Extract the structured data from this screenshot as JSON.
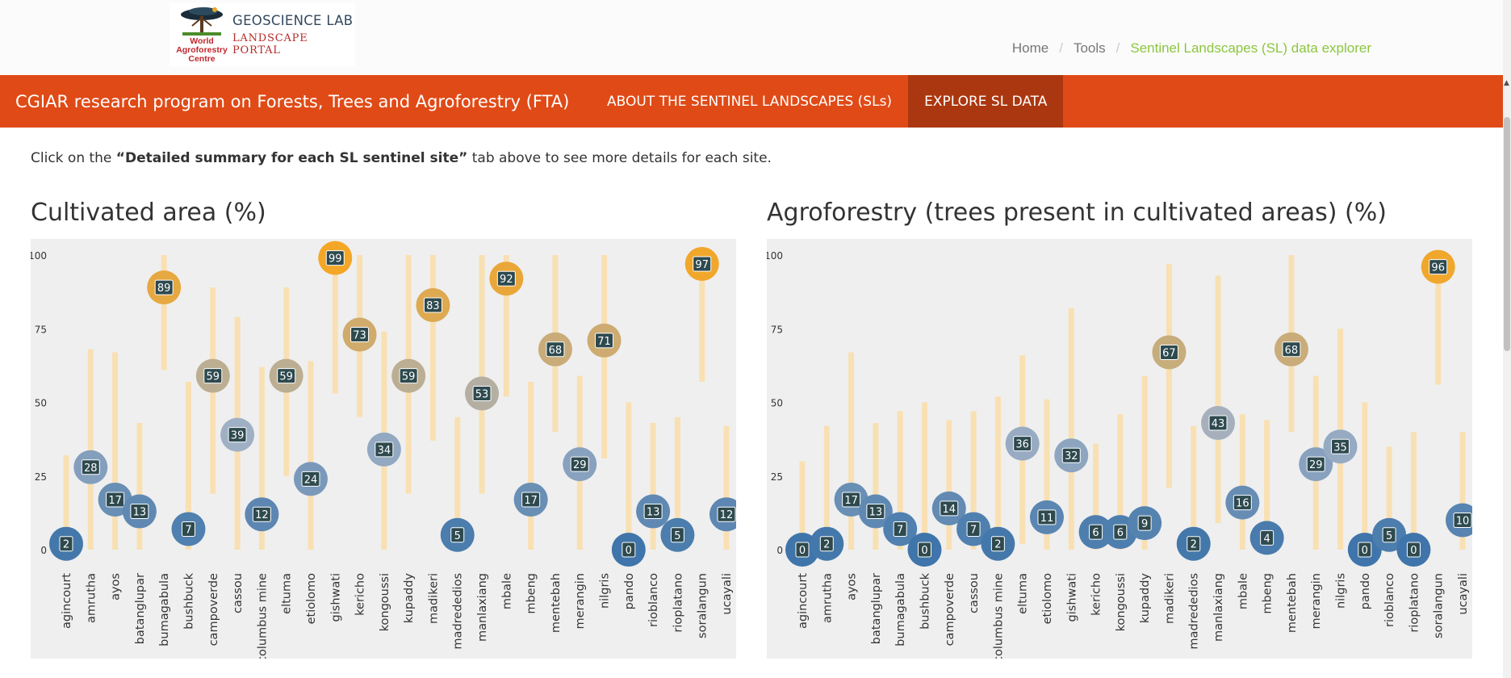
{
  "logo": {
    "lab": "GEOSCIENCE LAB",
    "portal": "LANDSCAPE PORTAL",
    "org_line1": "World",
    "org_line2": "Agroforestry",
    "org_line3": "Centre"
  },
  "breadcrumb": {
    "home": "Home",
    "tools": "Tools",
    "current": "Sentinel Landscapes (SL) data explorer"
  },
  "nav": {
    "brand": "CGIAR research program on Forests, Trees and Agroforestry (FTA)",
    "about": "ABOUT THE SENTINEL LANDSCAPES (SLs)",
    "explore": "EXPLORE SL DATA"
  },
  "intro": {
    "before": "Click on the ",
    "bold": "“Detailed summary for each SL sentinel site”",
    "after": " tab above to see more details for each site."
  },
  "colors": {
    "low": "#3f75aa",
    "mid": "#a2b1c5",
    "high": "#f5a623",
    "range_bar": "#f9e0b3",
    "plot_bg": "#efefef",
    "label_box": "#2e4a4f"
  },
  "chart_data": [
    {
      "type": "scatter",
      "title": "Cultivated area (%)",
      "ylim": [
        0,
        100
      ],
      "yticks": [
        0,
        25,
        50,
        75,
        100
      ],
      "categories": [
        "agincourt",
        "amrutha",
        "ayos",
        "batanglupar",
        "bumagabula",
        "bushbuck",
        "campoverde",
        "cassou",
        "columbus mine",
        "eltuma",
        "etiolomo",
        "gishwati",
        "kericho",
        "kongoussi",
        "kupaddy",
        "madikeri",
        "madrededios",
        "manlaxiang",
        "mbale",
        "mbeng",
        "mentebah",
        "merangin",
        "nilgris",
        "pando",
        "rioblanco",
        "rioplatano",
        "soralangun",
        "ucayali"
      ],
      "values": [
        2,
        28,
        17,
        13,
        89,
        7,
        59,
        39,
        12,
        59,
        24,
        99,
        73,
        34,
        59,
        83,
        5,
        53,
        92,
        17,
        68,
        29,
        71,
        0,
        13,
        5,
        97,
        12
      ]
    },
    {
      "type": "scatter",
      "title": "Agroforestry (trees present in cultivated areas) (%)",
      "ylim": [
        0,
        100
      ],
      "yticks": [
        0,
        25,
        50,
        75,
        100
      ],
      "categories": [
        "agincourt",
        "amrutha",
        "ayos",
        "batanglupar",
        "bumagabula",
        "bushbuck",
        "campoverde",
        "cassou",
        "columbus mine",
        "eltuma",
        "etiolomo",
        "gishwati",
        "kericho",
        "kongoussi",
        "kupaddy",
        "madikeri",
        "madrededios",
        "manlaxiang",
        "mbale",
        "mbeng",
        "mentebah",
        "merangin",
        "nilgris",
        "pando",
        "rioblanco",
        "rioplatano",
        "soralangun",
        "ucayali"
      ],
      "values": [
        0,
        2,
        17,
        13,
        7,
        0,
        14,
        7,
        2,
        36,
        11,
        32,
        6,
        6,
        9,
        67,
        2,
        43,
        16,
        4,
        68,
        29,
        35,
        0,
        5,
        0,
        96,
        10
      ]
    }
  ]
}
